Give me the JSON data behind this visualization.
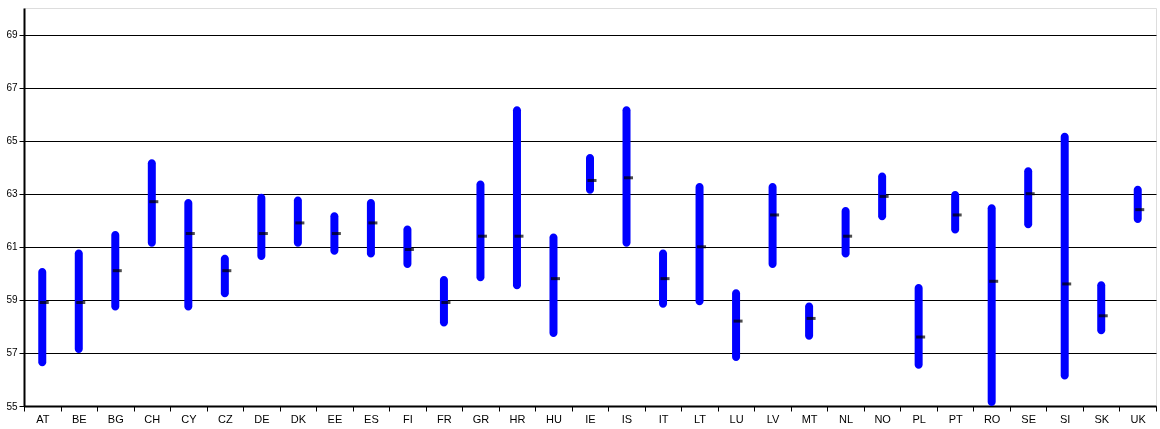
{
  "chart_data": {
    "type": "bar",
    "categories": [
      "AT",
      "BE",
      "BG",
      "CH",
      "CY",
      "CZ",
      "DE",
      "DK",
      "EE",
      "ES",
      "FI",
      "FR",
      "GR",
      "HR",
      "HU",
      "IE",
      "IS",
      "IT",
      "LT",
      "LU",
      "LV",
      "MT",
      "NL",
      "NO",
      "PL",
      "PT",
      "RO",
      "SE",
      "SI",
      "SK",
      "UK"
    ],
    "series": [
      {
        "color": "#0000ff",
        "base": [
          56.5,
          57.0,
          58.6,
          61.0,
          58.6,
          59.1,
          60.5,
          61.0,
          60.7,
          60.6,
          60.2,
          58.0,
          59.7,
          59.4,
          57.6,
          63.0,
          61.0,
          58.7,
          58.8,
          56.7,
          60.2,
          57.5,
          60.6,
          62.0,
          56.4,
          61.5,
          55.0,
          61.7,
          56.0,
          57.7,
          61.9
        ],
        "values": [
          3.7,
          3.9,
          3.0,
          3.3,
          4.2,
          1.6,
          2.5,
          1.9,
          1.6,
          2.2,
          1.6,
          1.9,
          3.8,
          6.9,
          3.9,
          1.5,
          5.3,
          2.2,
          4.6,
          2.7,
          3.2,
          1.4,
          1.9,
          1.8,
          3.2,
          1.6,
          7.6,
          2.3,
          9.3,
          2.0,
          1.4
        ]
      },
      {
        "type": "scatter",
        "color": "#000000",
        "x": [
          "AT",
          "BE",
          "BG",
          "CH",
          "CY",
          "CZ",
          "DE",
          "DK",
          "EE",
          "ES",
          "FI",
          "FR",
          "GR",
          "HR",
          "HU",
          "IE",
          "IS",
          "IT",
          "LT",
          "LU",
          "LV",
          "MT",
          "NL",
          "NO",
          "PL",
          "PT",
          "RO",
          "SE",
          "SI",
          "SK",
          "UK"
        ],
        "values": [
          58.9,
          58.9,
          60.1,
          62.7,
          61.5,
          60.1,
          61.5,
          61.9,
          61.5,
          61.9,
          60.9,
          58.9,
          61.4,
          61.4,
          59.8,
          63.5,
          63.6,
          59.8,
          61.0,
          58.2,
          62.2,
          58.3,
          61.4,
          62.9,
          57.6,
          62.2,
          59.7,
          63.0,
          59.6,
          58.4,
          62.4
        ]
      }
    ],
    "ylim": [
      55,
      70
    ],
    "yticks": [
      55,
      57,
      59,
      61,
      63,
      65,
      67,
      69
    ],
    "grid": "y"
  }
}
